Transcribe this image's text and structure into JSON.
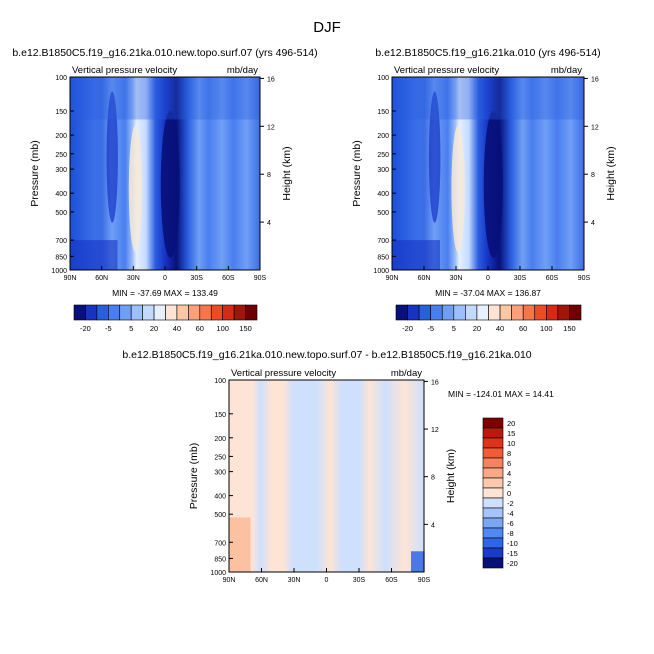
{
  "figure": {
    "title": "DJF"
  },
  "colors": {
    "left_cbar": [
      "#08107a",
      "#1633c4",
      "#2a5ee0",
      "#4a7ef0",
      "#6f9ff5",
      "#9cc0fb",
      "#c3daff",
      "#e6f0ff",
      "#ffe3d3",
      "#fdc6a5",
      "#fba07a",
      "#f8744c",
      "#ef4a26",
      "#d42a16",
      "#a31408",
      "#6e0000"
    ],
    "diff_cbar": [
      "#08107a",
      "#1a3ac8",
      "#2f66e4",
      "#5288f1",
      "#7aa6f6",
      "#a6c4fb",
      "#cfe0fd",
      "#fde4d5",
      "#fcc9ae",
      "#f9a987",
      "#f5845e",
      "#ee5c38",
      "#dc3418",
      "#b81a0c",
      "#7b0000"
    ]
  },
  "chart_data": [
    {
      "type": "heatmap",
      "name": "left-panel",
      "title": "b.e12.B1850C5.f19_g16.21ka.010.new.topo.surf.07 (yrs 496-514)",
      "left_string": "Vertical pressure velocity",
      "right_string": "mb/day",
      "ylabel": "Pressure (mb)",
      "ylabel_right": "Height (km)",
      "x_ticks": [
        "90N",
        "60N",
        "30N",
        "0",
        "30S",
        "60S",
        "90S"
      ],
      "x_values": [
        90,
        60,
        30,
        0,
        -30,
        -60,
        -90
      ],
      "y_ticks": [
        "100",
        "150",
        "200",
        "250",
        "300",
        "400",
        "500",
        "700",
        "850",
        "1000"
      ],
      "y_values": [
        100,
        150,
        200,
        250,
        300,
        400,
        500,
        700,
        850,
        1000
      ],
      "height_ticks": [
        "16",
        "12",
        "8",
        "4"
      ],
      "height_values": [
        16,
        12,
        8,
        4
      ],
      "stats": "MIN = -37.69   MAX = 133.49",
      "colorbar_labels": [
        "-20",
        "-5",
        "5",
        "20",
        "40",
        "60",
        "100",
        "150"
      ],
      "colorbar_levels": [
        -20,
        -15,
        -10,
        -5,
        -2,
        2,
        5,
        10,
        20,
        30,
        40,
        50,
        60,
        80,
        100,
        150
      ]
    },
    {
      "type": "heatmap",
      "name": "right-panel",
      "title": "b.e12.B1850C5.f19_g16.21ka.010 (yrs 496-514)",
      "left_string": "Vertical pressure velocity",
      "right_string": "mb/day",
      "ylabel": "Pressure (mb)",
      "ylabel_right": "Height (km)",
      "x_ticks": [
        "90N",
        "60N",
        "30N",
        "0",
        "30S",
        "60S",
        "90S"
      ],
      "x_values": [
        90,
        60,
        30,
        0,
        -30,
        -60,
        -90
      ],
      "y_ticks": [
        "100",
        "150",
        "200",
        "250",
        "300",
        "400",
        "500",
        "700",
        "850",
        "1000"
      ],
      "y_values": [
        100,
        150,
        200,
        250,
        300,
        400,
        500,
        700,
        850,
        1000
      ],
      "height_ticks": [
        "16",
        "12",
        "8",
        "4"
      ],
      "height_values": [
        16,
        12,
        8,
        4
      ],
      "stats": "MIN = -37.04   MAX = 136.87",
      "colorbar_labels": [
        "-20",
        "-5",
        "5",
        "20",
        "40",
        "60",
        "100",
        "150"
      ],
      "colorbar_levels": [
        -20,
        -15,
        -10,
        -5,
        -2,
        2,
        5,
        10,
        20,
        30,
        40,
        50,
        60,
        80,
        100,
        150
      ]
    },
    {
      "type": "heatmap",
      "name": "difference-panel",
      "title": "b.e12.B1850C5.f19_g16.21ka.010.new.topo.surf.07 - b.e12.B1850C5.f19_g16.21ka.010",
      "left_string": "Vertical pressure velocity",
      "right_string": "mb/day",
      "ylabel": "Pressure (mb)",
      "ylabel_right": "Height (km)",
      "x_ticks": [
        "90N",
        "60N",
        "30N",
        "0",
        "30S",
        "60S",
        "90S"
      ],
      "x_values": [
        90,
        60,
        30,
        0,
        -30,
        -60,
        -90
      ],
      "y_ticks": [
        "100",
        "150",
        "200",
        "250",
        "300",
        "400",
        "500",
        "700",
        "850",
        "1000"
      ],
      "y_values": [
        100,
        150,
        200,
        250,
        300,
        400,
        500,
        700,
        850,
        1000
      ],
      "height_ticks": [
        "16",
        "12",
        "8",
        "4"
      ],
      "height_values": [
        16,
        12,
        8,
        4
      ],
      "stats": "MIN = -124.01   MAX =  14.41",
      "colorbar_labels": [
        "20",
        "15",
        "10",
        "8",
        "6",
        "4",
        "2",
        "0",
        "-2",
        "-4",
        "-6",
        "-8",
        "-10",
        "-15",
        "-20"
      ],
      "colorbar_levels": [
        20,
        15,
        10,
        8,
        6,
        4,
        2,
        0,
        -2,
        -4,
        -6,
        -8,
        -10,
        -15,
        -20
      ]
    }
  ]
}
